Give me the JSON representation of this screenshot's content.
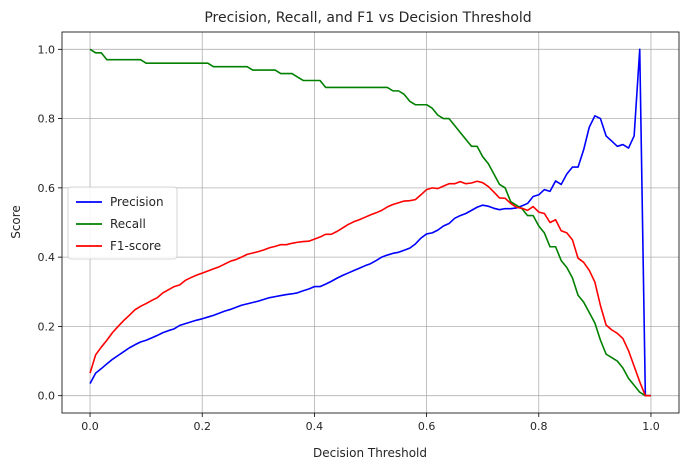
{
  "chart_data": {
    "type": "line",
    "title": "Precision, Recall, and F1 vs Decision Threshold",
    "xlabel": "Decision Threshold",
    "ylabel": "Score",
    "xlim": [
      -0.05,
      1.05
    ],
    "ylim": [
      -0.05,
      1.05
    ],
    "xticks": [
      0.0,
      0.2,
      0.4,
      0.6,
      0.8,
      1.0
    ],
    "xtick_labels": [
      "0.0",
      "0.2",
      "0.4",
      "0.6",
      "0.8",
      "1.0"
    ],
    "yticks": [
      0.0,
      0.2,
      0.4,
      0.6,
      0.8,
      1.0
    ],
    "ytick_labels": [
      "0.0",
      "0.2",
      "0.4",
      "0.6",
      "0.8",
      "1.0"
    ],
    "grid": true,
    "legend_position": "center-left",
    "series": [
      {
        "name": "Precision",
        "color": "#0000ff",
        "x": [
          0.0,
          0.01,
          0.02,
          0.03,
          0.04,
          0.05,
          0.06,
          0.07,
          0.08,
          0.09,
          0.1,
          0.11,
          0.12,
          0.13,
          0.14,
          0.15,
          0.16,
          0.17,
          0.18,
          0.19,
          0.2,
          0.21,
          0.22,
          0.23,
          0.24,
          0.25,
          0.26,
          0.27,
          0.28,
          0.29,
          0.3,
          0.31,
          0.32,
          0.33,
          0.34,
          0.35,
          0.36,
          0.37,
          0.38,
          0.39,
          0.4,
          0.41,
          0.42,
          0.43,
          0.44,
          0.45,
          0.46,
          0.47,
          0.48,
          0.49,
          0.5,
          0.51,
          0.52,
          0.53,
          0.54,
          0.55,
          0.56,
          0.57,
          0.58,
          0.59,
          0.6,
          0.61,
          0.62,
          0.63,
          0.64,
          0.65,
          0.66,
          0.67,
          0.68,
          0.69,
          0.7,
          0.71,
          0.72,
          0.73,
          0.74,
          0.75,
          0.76,
          0.77,
          0.78,
          0.79,
          0.8,
          0.81,
          0.82,
          0.83,
          0.84,
          0.85,
          0.86,
          0.87,
          0.88,
          0.89,
          0.9,
          0.91,
          0.92,
          0.93,
          0.94,
          0.95,
          0.96,
          0.97,
          0.98,
          0.99,
          1.0
        ],
        "values": [
          0.035,
          0.065,
          0.078,
          0.092,
          0.105,
          0.116,
          0.127,
          0.138,
          0.147,
          0.155,
          0.16,
          0.167,
          0.174,
          0.182,
          0.188,
          0.193,
          0.203,
          0.208,
          0.213,
          0.218,
          0.222,
          0.227,
          0.232,
          0.238,
          0.244,
          0.249,
          0.255,
          0.261,
          0.265,
          0.269,
          0.273,
          0.278,
          0.283,
          0.286,
          0.289,
          0.292,
          0.294,
          0.297,
          0.303,
          0.308,
          0.315,
          0.315,
          0.322,
          0.33,
          0.339,
          0.347,
          0.354,
          0.361,
          0.368,
          0.375,
          0.381,
          0.39,
          0.4,
          0.406,
          0.411,
          0.414,
          0.42,
          0.426,
          0.438,
          0.455,
          0.467,
          0.47,
          0.478,
          0.49,
          0.497,
          0.512,
          0.52,
          0.526,
          0.535,
          0.544,
          0.55,
          0.547,
          0.541,
          0.537,
          0.54,
          0.54,
          0.542,
          0.548,
          0.555,
          0.575,
          0.58,
          0.595,
          0.59,
          0.62,
          0.61,
          0.64,
          0.66,
          0.66,
          0.71,
          0.775,
          0.808,
          0.8,
          0.75,
          0.735,
          0.72,
          0.725,
          0.715,
          0.75,
          1.0,
          0.0,
          0.0
        ]
      },
      {
        "name": "Recall",
        "color": "#008000",
        "x": [
          0.0,
          0.01,
          0.02,
          0.03,
          0.04,
          0.05,
          0.06,
          0.07,
          0.08,
          0.09,
          0.1,
          0.11,
          0.12,
          0.13,
          0.14,
          0.15,
          0.16,
          0.17,
          0.18,
          0.19,
          0.2,
          0.21,
          0.22,
          0.23,
          0.24,
          0.25,
          0.26,
          0.27,
          0.28,
          0.29,
          0.3,
          0.31,
          0.32,
          0.33,
          0.34,
          0.35,
          0.36,
          0.37,
          0.38,
          0.39,
          0.4,
          0.41,
          0.42,
          0.43,
          0.44,
          0.45,
          0.46,
          0.47,
          0.48,
          0.49,
          0.5,
          0.51,
          0.52,
          0.53,
          0.54,
          0.55,
          0.56,
          0.57,
          0.58,
          0.59,
          0.6,
          0.61,
          0.62,
          0.63,
          0.64,
          0.65,
          0.66,
          0.67,
          0.68,
          0.69,
          0.7,
          0.71,
          0.72,
          0.73,
          0.74,
          0.75,
          0.76,
          0.77,
          0.78,
          0.79,
          0.8,
          0.81,
          0.82,
          0.83,
          0.84,
          0.85,
          0.86,
          0.87,
          0.88,
          0.89,
          0.9,
          0.91,
          0.92,
          0.93,
          0.94,
          0.95,
          0.96,
          0.97,
          0.98,
          0.99,
          1.0
        ],
        "values": [
          1.0,
          0.99,
          0.99,
          0.97,
          0.97,
          0.97,
          0.97,
          0.97,
          0.97,
          0.97,
          0.96,
          0.96,
          0.96,
          0.96,
          0.96,
          0.96,
          0.96,
          0.96,
          0.96,
          0.96,
          0.96,
          0.96,
          0.95,
          0.95,
          0.95,
          0.95,
          0.95,
          0.95,
          0.95,
          0.94,
          0.94,
          0.94,
          0.94,
          0.94,
          0.93,
          0.93,
          0.93,
          0.92,
          0.91,
          0.91,
          0.91,
          0.91,
          0.89,
          0.89,
          0.89,
          0.89,
          0.89,
          0.89,
          0.89,
          0.89,
          0.89,
          0.89,
          0.89,
          0.89,
          0.88,
          0.88,
          0.87,
          0.85,
          0.84,
          0.84,
          0.84,
          0.83,
          0.81,
          0.8,
          0.8,
          0.78,
          0.76,
          0.74,
          0.72,
          0.72,
          0.69,
          0.67,
          0.64,
          0.61,
          0.6,
          0.56,
          0.55,
          0.54,
          0.52,
          0.52,
          0.49,
          0.47,
          0.43,
          0.43,
          0.39,
          0.37,
          0.34,
          0.29,
          0.27,
          0.24,
          0.21,
          0.16,
          0.12,
          0.11,
          0.1,
          0.08,
          0.05,
          0.03,
          0.01,
          0.0,
          0.0
        ]
      },
      {
        "name": "F1-score",
        "color": "#ff0000",
        "x": [
          0.0,
          0.01,
          0.02,
          0.03,
          0.04,
          0.05,
          0.06,
          0.07,
          0.08,
          0.09,
          0.1,
          0.11,
          0.12,
          0.13,
          0.14,
          0.15,
          0.16,
          0.17,
          0.18,
          0.19,
          0.2,
          0.21,
          0.22,
          0.23,
          0.24,
          0.25,
          0.26,
          0.27,
          0.28,
          0.29,
          0.3,
          0.31,
          0.32,
          0.33,
          0.34,
          0.35,
          0.36,
          0.37,
          0.38,
          0.39,
          0.4,
          0.41,
          0.42,
          0.43,
          0.44,
          0.45,
          0.46,
          0.47,
          0.48,
          0.49,
          0.5,
          0.51,
          0.52,
          0.53,
          0.54,
          0.55,
          0.56,
          0.57,
          0.58,
          0.59,
          0.6,
          0.61,
          0.62,
          0.63,
          0.64,
          0.65,
          0.66,
          0.67,
          0.68,
          0.69,
          0.7,
          0.71,
          0.72,
          0.73,
          0.74,
          0.75,
          0.76,
          0.77,
          0.78,
          0.79,
          0.8,
          0.81,
          0.82,
          0.83,
          0.84,
          0.85,
          0.86,
          0.87,
          0.88,
          0.89,
          0.9,
          0.91,
          0.92,
          0.93,
          0.94,
          0.95,
          0.96,
          0.97,
          0.98,
          0.99,
          1.0
        ],
        "values": [
          0.065,
          0.118,
          0.14,
          0.16,
          0.182,
          0.2,
          0.217,
          0.232,
          0.248,
          0.258,
          0.266,
          0.275,
          0.283,
          0.297,
          0.306,
          0.315,
          0.32,
          0.333,
          0.341,
          0.348,
          0.354,
          0.36,
          0.366,
          0.372,
          0.38,
          0.388,
          0.393,
          0.4,
          0.408,
          0.412,
          0.416,
          0.421,
          0.427,
          0.431,
          0.436,
          0.436,
          0.44,
          0.443,
          0.445,
          0.446,
          0.452,
          0.458,
          0.466,
          0.466,
          0.474,
          0.484,
          0.494,
          0.502,
          0.508,
          0.515,
          0.522,
          0.528,
          0.535,
          0.545,
          0.552,
          0.557,
          0.562,
          0.563,
          0.566,
          0.58,
          0.595,
          0.6,
          0.598,
          0.605,
          0.612,
          0.612,
          0.618,
          0.612,
          0.614,
          0.619,
          0.615,
          0.604,
          0.588,
          0.571,
          0.57,
          0.555,
          0.544,
          0.541,
          0.535,
          0.546,
          0.53,
          0.526,
          0.5,
          0.508,
          0.476,
          0.47,
          0.45,
          0.397,
          0.385,
          0.362,
          0.328,
          0.26,
          0.204,
          0.19,
          0.18,
          0.165,
          0.13,
          0.085,
          0.04,
          0.0,
          0.0
        ]
      }
    ]
  }
}
